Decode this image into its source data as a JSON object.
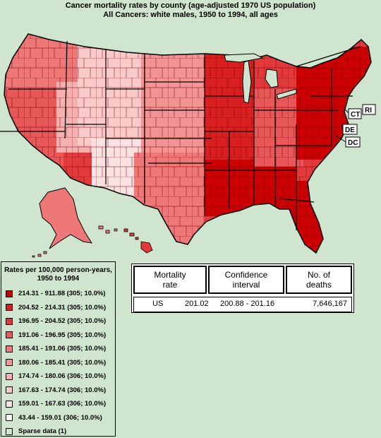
{
  "title": {
    "line1": "Cancer mortality rates by county (age-adjusted 1970 US population)",
    "line2": "All Cancers:  white males, 1950 to 1994, all ages"
  },
  "map": {
    "labels": [
      "RI",
      "CT",
      "DE",
      "DC"
    ],
    "colors": [
      "#cc0000",
      "#d91f1f",
      "#e23a3a",
      "#e85858",
      "#ee7777",
      "#f29494",
      "#f5b0b0",
      "#f9caca",
      "#fbe2e2",
      "#ffffff"
    ]
  },
  "legend": {
    "title_line1": "Rates per 100,000 person-years,",
    "title_line2": "1950 to 1994",
    "items": [
      {
        "label": "214.31 - 911.88 (305; 10.0%)",
        "color": "#cc0000"
      },
      {
        "label": "204.52 - 214.31 (305; 10.0%)",
        "color": "#d91f1f"
      },
      {
        "label": "196.95 - 204.52 (305; 10.0%)",
        "color": "#e23a3a"
      },
      {
        "label": "191.06 - 196.95 (305; 10.0%)",
        "color": "#e85858"
      },
      {
        "label": "185.41 - 191.06 (305; 10.0%)",
        "color": "#ee7777"
      },
      {
        "label": "180.06 - 185.41 (305; 10.0%)",
        "color": "#f29494"
      },
      {
        "label": "174.74 - 180.06 (306; 10.0%)",
        "color": "#f5b0b0"
      },
      {
        "label": "167.63 - 174.74 (306; 10.0%)",
        "color": "#f9caca"
      },
      {
        "label": "159.01 - 167.63 (306; 10.0%)",
        "color": "#fbe2e2"
      },
      {
        "label": "43.44 - 159.01 (306; 10.0%)",
        "color": "#ffffff"
      },
      {
        "label": "Sparse data (1)",
        "color": "#cfe5cd"
      }
    ]
  },
  "stats": {
    "headers": {
      "rate_l1": "Mortality",
      "rate_l2": "rate",
      "ci_l1": "Confidence",
      "ci_l2": "interval",
      "deaths_l1": "No. of",
      "deaths_l2": "deaths"
    },
    "row": {
      "region": "US",
      "rate": "201.02",
      "ci": "200.88 - 201.16",
      "deaths": "7,646,167"
    }
  }
}
